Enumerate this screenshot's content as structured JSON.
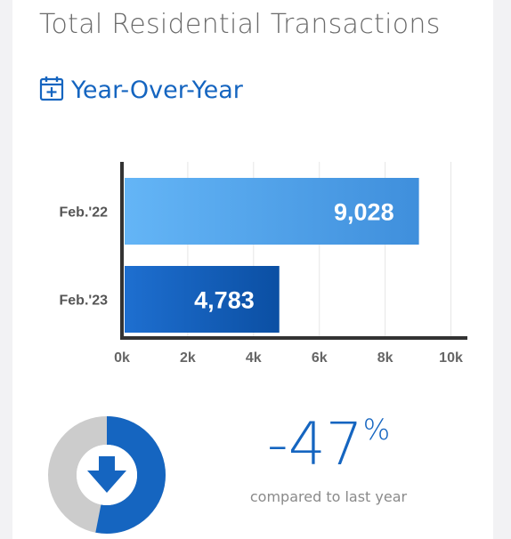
{
  "title": "Total Residential Transactions",
  "period": {
    "icon": "calendar-add-icon",
    "label": "Year-Over-Year"
  },
  "colors": {
    "accent": "#1565c0",
    "bar_light_start": "#64b5f6",
    "bar_light_end": "#3f8fdc",
    "bar_dark_start": "#1e6fd0",
    "bar_dark_end": "#0b4fa3",
    "donut_gray": "#cccccc"
  },
  "chart_data": {
    "type": "bar",
    "orientation": "horizontal",
    "categories": [
      "Feb.'22",
      "Feb.'23"
    ],
    "values": [
      9028,
      4783
    ],
    "value_labels": [
      "9,028",
      "4,783"
    ],
    "xlim": [
      0,
      10500
    ],
    "xticks": [
      0,
      2000,
      4000,
      6000,
      8000,
      10000
    ],
    "xtick_labels": [
      "0k",
      "2k",
      "4k",
      "6k",
      "8k",
      "10k"
    ],
    "grid": true
  },
  "summary": {
    "change_number": "-47",
    "change_unit": "%",
    "caption": "compared to last year",
    "share_of_previous": 0.53,
    "direction_icon": "arrow-down-icon"
  }
}
